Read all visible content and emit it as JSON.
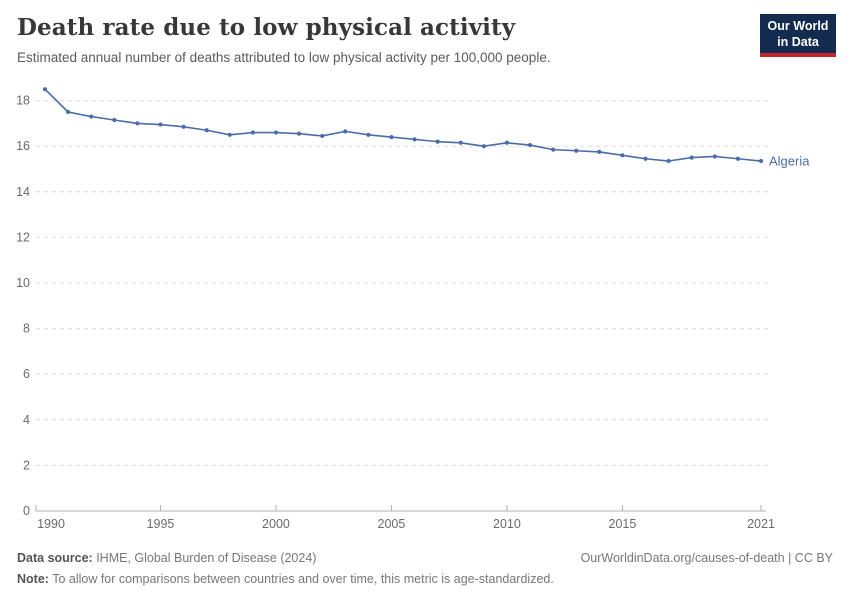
{
  "header": {
    "title": "Death rate due to low physical activity",
    "subtitle": "Estimated annual number of deaths attributed to low physical activity per 100,000 people."
  },
  "logo": {
    "line1": "Our World",
    "line2": "in Data",
    "bg_color": "#122b4e",
    "stripe_color": "#c2262c"
  },
  "chart_data": {
    "type": "line",
    "title": "Death rate due to low physical activity",
    "x": [
      1990,
      1991,
      1992,
      1993,
      1994,
      1995,
      1996,
      1997,
      1998,
      1999,
      2000,
      2001,
      2002,
      2003,
      2004,
      2005,
      2006,
      2007,
      2008,
      2009,
      2010,
      2011,
      2012,
      2013,
      2014,
      2015,
      2016,
      2017,
      2018,
      2019,
      2020,
      2021
    ],
    "series": [
      {
        "name": "Algeria",
        "color": "#4c6ca8",
        "values": [
          18.5,
          17.5,
          17.3,
          17.15,
          17.0,
          16.95,
          16.85,
          16.7,
          16.5,
          16.6,
          16.6,
          16.55,
          16.45,
          16.65,
          16.5,
          16.4,
          16.3,
          16.2,
          16.15,
          16.0,
          16.15,
          16.05,
          15.85,
          15.8,
          15.75,
          15.6,
          15.45,
          15.35,
          15.5,
          15.55,
          15.45,
          15.35
        ]
      }
    ],
    "xlabel": "",
    "ylabel": "",
    "xlim": [
      1990,
      2021
    ],
    "ylim": [
      0,
      18.5
    ],
    "x_ticks": [
      1990,
      1995,
      2000,
      2005,
      2010,
      2015,
      2021
    ],
    "y_ticks": [
      0,
      2,
      4,
      6,
      8,
      10,
      12,
      14,
      16,
      18
    ],
    "grid": "horizontal-dashed",
    "legend_position": "end-of-line-label",
    "end_label": "Algeria",
    "colors": {
      "grid": "#dcdcdc",
      "axis": "#b0b0b0",
      "tick_label": "#6b6b6b"
    }
  },
  "footer": {
    "source_label": "Data source:",
    "source_text": " IHME, Global Burden of Disease (2024)",
    "link_text": "OurWorldinData.org/causes-of-death | CC BY",
    "note_label": "Note:",
    "note_text": " To allow for comparisons between countries and over time, this metric is age-standardized."
  }
}
